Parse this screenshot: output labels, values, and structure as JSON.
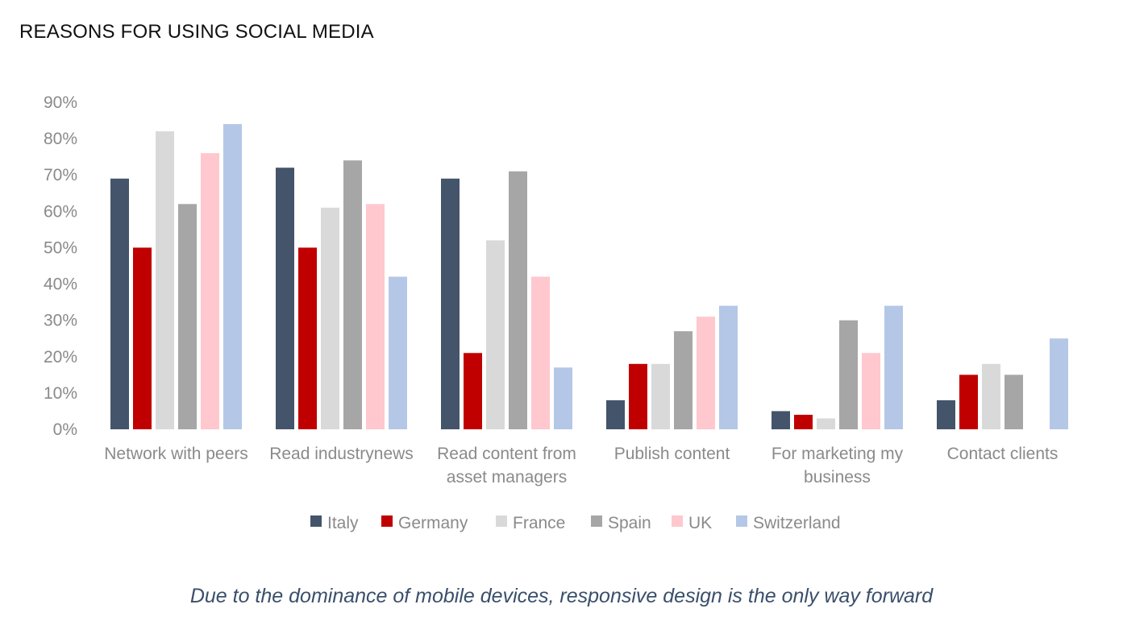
{
  "title": "REASONS FOR USING SOCIAL MEDIA",
  "caption": "Due to the dominance of mobile devices, responsive design is the only way forward",
  "chart_data": {
    "type": "bar",
    "title": "",
    "xlabel": "",
    "ylabel": "",
    "ylim": [
      0,
      90
    ],
    "yticks": [
      0,
      10,
      20,
      30,
      40,
      50,
      60,
      70,
      80,
      90
    ],
    "ytick_labels": [
      "0%",
      "10%",
      "20%",
      "30%",
      "40%",
      "50%",
      "60%",
      "70%",
      "80%",
      "90%"
    ],
    "grid": false,
    "legend_position": "bottom",
    "categories": [
      "Network with peers",
      "Read industry news",
      "Read content from asset managers",
      "Publish content",
      "For marketing my business",
      "Contact clients"
    ],
    "category_label_lines": [
      [
        "Network with peers"
      ],
      [
        "Read industrynews"
      ],
      [
        "Read content from",
        "asset managers"
      ],
      [
        "Publish content"
      ],
      [
        "For marketing my",
        "business"
      ],
      [
        "Contact clients"
      ]
    ],
    "series": [
      {
        "name": "Italy",
        "color": "#44546a",
        "values": [
          69,
          72,
          69,
          8,
          5,
          8
        ]
      },
      {
        "name": "Germany",
        "color": "#c00000",
        "values": [
          50,
          50,
          21,
          18,
          4,
          15
        ]
      },
      {
        "name": "France",
        "color": "#d9d9d9",
        "values": [
          82,
          61,
          52,
          18,
          3,
          18
        ]
      },
      {
        "name": "Spain",
        "color": "#a6a6a6",
        "values": [
          62,
          74,
          71,
          27,
          30,
          15
        ]
      },
      {
        "name": "UK",
        "color": "#ffc7ce",
        "values": [
          76,
          62,
          42,
          31,
          21,
          0
        ]
      },
      {
        "name": "Switzerland",
        "color": "#b4c7e7",
        "values": [
          84,
          42,
          17,
          34,
          34,
          25
        ]
      }
    ]
  }
}
